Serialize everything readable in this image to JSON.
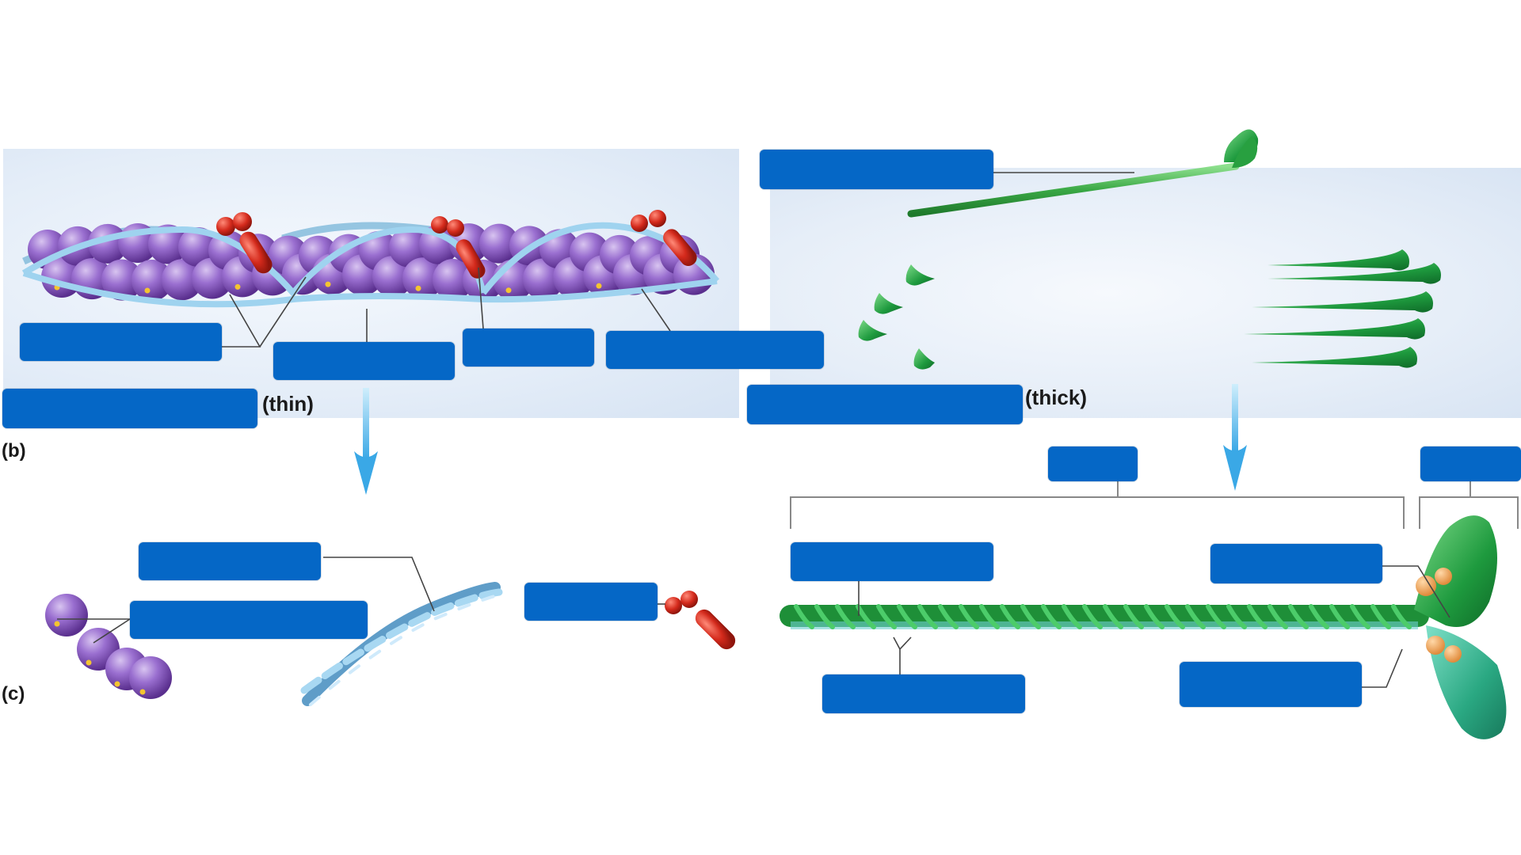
{
  "part_b": {
    "panel_label": "(b)",
    "thin_caption": "(thin)",
    "thick_caption": "(thick)"
  },
  "part_c": {
    "panel_label": "(c)"
  },
  "colors": {
    "label_box": "#0567c6",
    "actin_bead": "#8a5cc0",
    "actin_binding_site": "#f4c430",
    "tropomyosin": "#8cc8e6",
    "troponin": "#d42a1c",
    "myosin": "#3aa845",
    "light_chain": "#f0a860",
    "arrow": "#5bb9ea",
    "panel_background": "#dfe9f7"
  },
  "label_boxes_count": 16
}
